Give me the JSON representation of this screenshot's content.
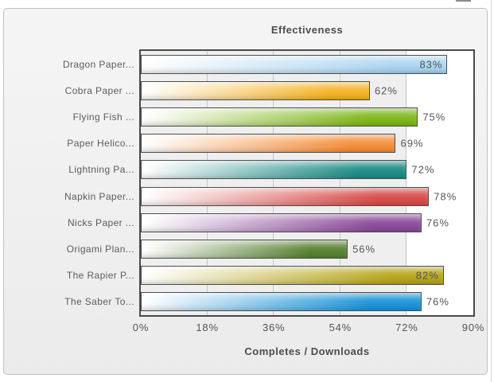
{
  "chart_data": {
    "type": "bar",
    "orientation": "horizontal",
    "title": "Effectiveness",
    "xlabel": "Completes / Downloads",
    "categories": [
      "Dragon Paper...",
      "Cobra Paper ...",
      "Flying Fish ...",
      "Paper Helico...",
      "Lightning Pa...",
      "Napkin Paper...",
      "Nicks Paper ...",
      "Origami Plan...",
      "The Rapier P...",
      "The Saber To..."
    ],
    "values": [
      83,
      62,
      75,
      69,
      72,
      78,
      76,
      56,
      82,
      76
    ],
    "value_labels": [
      "83%",
      "62%",
      "75%",
      "69%",
      "72%",
      "78%",
      "76%",
      "56%",
      "82%",
      "76%"
    ],
    "bar_colors": [
      "#aed7f3",
      "#f6b62a",
      "#83ba1f",
      "#f8913e",
      "#218f89",
      "#da4f4c",
      "#8f4f9d",
      "#5b8536",
      "#b9a91e",
      "#1f96da"
    ],
    "x_ticks": [
      "0%",
      "18%",
      "36%",
      "54%",
      "72%",
      "90%"
    ],
    "xlim": [
      0,
      90
    ],
    "grid": true,
    "legend": false,
    "highlight_band": {
      "from": 72,
      "to": 90
    }
  },
  "colors": {
    "panel_background": "#f0f0f0",
    "panel_border": "#bfbfbf",
    "plot_background": "#efefef",
    "plot_band": "#ffffff",
    "plot_border": "#4a4a4a",
    "gridline": "#c7c7c7",
    "bar_border": "#4e4e4e",
    "bar_gradient_start": "#ffffff",
    "title_text": "#4c4c4c",
    "label_text": "#5c5c5c",
    "value_text": "#555555"
  }
}
